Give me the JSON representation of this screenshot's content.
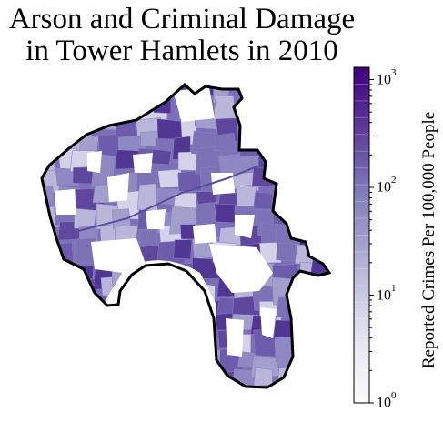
{
  "title_line1": "Arson and Criminal Damage",
  "title_line2": "in Tower Hamlets in 2010",
  "colorbar": {
    "label": "Reported Crimes Per 100,000 People",
    "scale": "log",
    "range": [
      1,
      1300
    ],
    "ticks": [
      {
        "base": "10",
        "exp": "0",
        "value": 1
      },
      {
        "base": "10",
        "exp": "1",
        "value": 10
      },
      {
        "base": "10",
        "exp": "2",
        "value": 100
      },
      {
        "base": "10",
        "exp": "3",
        "value": 1000
      }
    ],
    "colors": [
      "#fcfbfd",
      "#efedf5",
      "#dadaeb",
      "#bcbddc",
      "#9e9ac8",
      "#807dba",
      "#6a51a3",
      "#54278f",
      "#3f007d"
    ]
  },
  "map": {
    "region": "Tower Hamlets",
    "no_data_color": "#ffffff",
    "outline_color": "#000000"
  }
}
